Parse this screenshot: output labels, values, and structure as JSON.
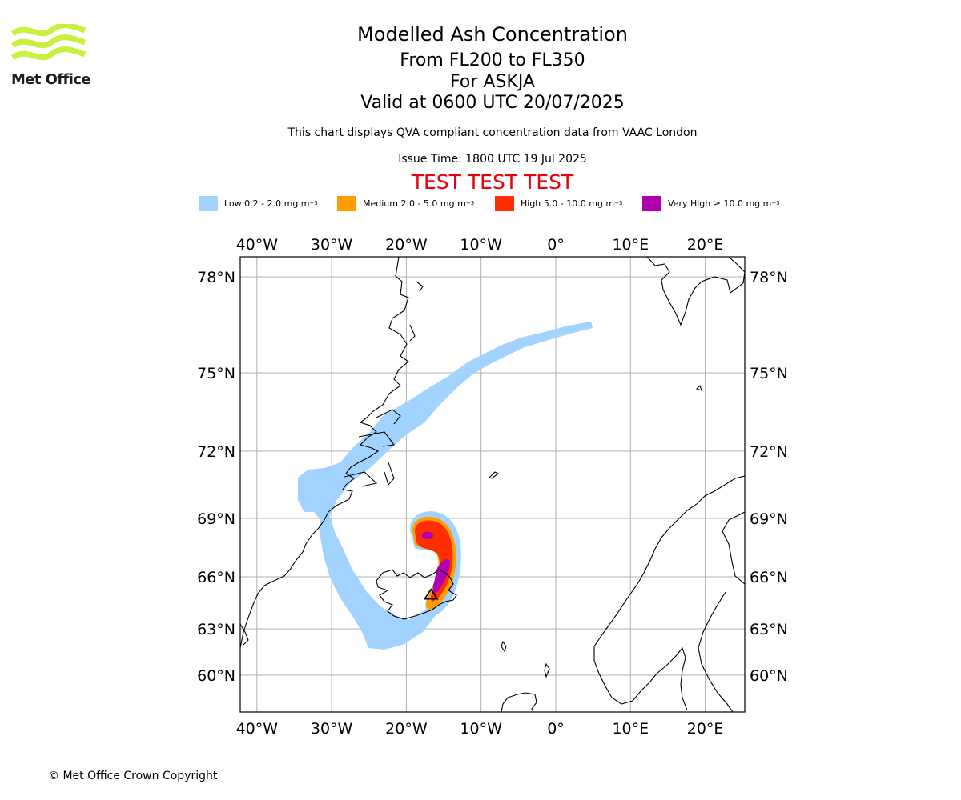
{
  "header": {
    "title": "Modelled Ash Concentration",
    "levels": "From FL200 to FL350",
    "volcano": "For ASKJA",
    "valid": "Valid at 0600 UTC 20/07/2025",
    "subtitle": "This chart displays QVA compliant concentration data from VAAC London",
    "issue_time": "Issue Time: 1800 UTC 19 Jul 2025",
    "test_banner": "TEST TEST TEST"
  },
  "logo": {
    "text": "Met Office",
    "color": "#c8f03c"
  },
  "legend": [
    {
      "label": "Low 0.2 - 2.0 mg m",
      "unit_sup": "−3",
      "color": "#a2d2fe"
    },
    {
      "label": "Medium 2.0 - 5.0 mg m",
      "unit_sup": "−3",
      "color": "#ff9c00"
    },
    {
      "label": "High 5.0 - 10.0 mg m",
      "unit_sup": "−3",
      "color": "#ff2e00"
    },
    {
      "label": "Very High  ≥  10.0 mg m",
      "unit_sup": "−3",
      "color": "#b000b0"
    }
  ],
  "map": {
    "lon_ticks": [
      {
        "lon": -40,
        "label": "40°W"
      },
      {
        "lon": -30,
        "label": "30°W"
      },
      {
        "lon": -20,
        "label": "20°W"
      },
      {
        "lon": -10,
        "label": "10°W"
      },
      {
        "lon": 0,
        "label": "0°"
      },
      {
        "lon": 10,
        "label": "10°E"
      },
      {
        "lon": 20,
        "label": "20°E"
      }
    ],
    "lat_ticks": [
      {
        "lat": 78,
        "label": "78°N"
      },
      {
        "lat": 75,
        "label": "75°N"
      },
      {
        "lat": 72,
        "label": "72°N"
      },
      {
        "lat": 69,
        "label": "69°N"
      },
      {
        "lat": 66,
        "label": "66°N"
      },
      {
        "lat": 63,
        "label": "63°N"
      },
      {
        "lat": 60,
        "label": "60°N"
      }
    ],
    "volcano_lon": -16.7,
    "volcano_lat": 65.0
  },
  "footer": {
    "copyright": "© Met Office Crown Copyright"
  }
}
